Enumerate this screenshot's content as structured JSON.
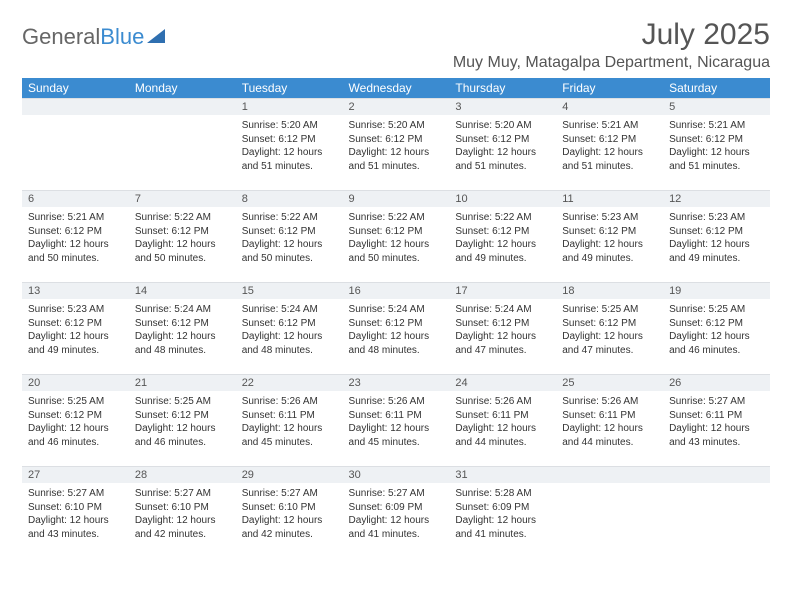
{
  "logo": {
    "word1": "General",
    "word2": "Blue"
  },
  "header": {
    "month_title": "July 2025",
    "location": "Muy Muy, Matagalpa Department, Nicaragua"
  },
  "colors": {
    "header_bg": "#3b8bd0",
    "header_text": "#ffffff",
    "daynum_bg": "#eef1f4",
    "page_bg": "#ffffff",
    "text": "#333333"
  },
  "weekdays": [
    "Sunday",
    "Monday",
    "Tuesday",
    "Wednesday",
    "Thursday",
    "Friday",
    "Saturday"
  ],
  "weeks": [
    [
      {
        "day": "",
        "sunrise": "",
        "sunset": "",
        "daylight": ""
      },
      {
        "day": "",
        "sunrise": "",
        "sunset": "",
        "daylight": ""
      },
      {
        "day": "1",
        "sunrise": "Sunrise: 5:20 AM",
        "sunset": "Sunset: 6:12 PM",
        "daylight": "Daylight: 12 hours and 51 minutes."
      },
      {
        "day": "2",
        "sunrise": "Sunrise: 5:20 AM",
        "sunset": "Sunset: 6:12 PM",
        "daylight": "Daylight: 12 hours and 51 minutes."
      },
      {
        "day": "3",
        "sunrise": "Sunrise: 5:20 AM",
        "sunset": "Sunset: 6:12 PM",
        "daylight": "Daylight: 12 hours and 51 minutes."
      },
      {
        "day": "4",
        "sunrise": "Sunrise: 5:21 AM",
        "sunset": "Sunset: 6:12 PM",
        "daylight": "Daylight: 12 hours and 51 minutes."
      },
      {
        "day": "5",
        "sunrise": "Sunrise: 5:21 AM",
        "sunset": "Sunset: 6:12 PM",
        "daylight": "Daylight: 12 hours and 51 minutes."
      }
    ],
    [
      {
        "day": "6",
        "sunrise": "Sunrise: 5:21 AM",
        "sunset": "Sunset: 6:12 PM",
        "daylight": "Daylight: 12 hours and 50 minutes."
      },
      {
        "day": "7",
        "sunrise": "Sunrise: 5:22 AM",
        "sunset": "Sunset: 6:12 PM",
        "daylight": "Daylight: 12 hours and 50 minutes."
      },
      {
        "day": "8",
        "sunrise": "Sunrise: 5:22 AM",
        "sunset": "Sunset: 6:12 PM",
        "daylight": "Daylight: 12 hours and 50 minutes."
      },
      {
        "day": "9",
        "sunrise": "Sunrise: 5:22 AM",
        "sunset": "Sunset: 6:12 PM",
        "daylight": "Daylight: 12 hours and 50 minutes."
      },
      {
        "day": "10",
        "sunrise": "Sunrise: 5:22 AM",
        "sunset": "Sunset: 6:12 PM",
        "daylight": "Daylight: 12 hours and 49 minutes."
      },
      {
        "day": "11",
        "sunrise": "Sunrise: 5:23 AM",
        "sunset": "Sunset: 6:12 PM",
        "daylight": "Daylight: 12 hours and 49 minutes."
      },
      {
        "day": "12",
        "sunrise": "Sunrise: 5:23 AM",
        "sunset": "Sunset: 6:12 PM",
        "daylight": "Daylight: 12 hours and 49 minutes."
      }
    ],
    [
      {
        "day": "13",
        "sunrise": "Sunrise: 5:23 AM",
        "sunset": "Sunset: 6:12 PM",
        "daylight": "Daylight: 12 hours and 49 minutes."
      },
      {
        "day": "14",
        "sunrise": "Sunrise: 5:24 AM",
        "sunset": "Sunset: 6:12 PM",
        "daylight": "Daylight: 12 hours and 48 minutes."
      },
      {
        "day": "15",
        "sunrise": "Sunrise: 5:24 AM",
        "sunset": "Sunset: 6:12 PM",
        "daylight": "Daylight: 12 hours and 48 minutes."
      },
      {
        "day": "16",
        "sunrise": "Sunrise: 5:24 AM",
        "sunset": "Sunset: 6:12 PM",
        "daylight": "Daylight: 12 hours and 48 minutes."
      },
      {
        "day": "17",
        "sunrise": "Sunrise: 5:24 AM",
        "sunset": "Sunset: 6:12 PM",
        "daylight": "Daylight: 12 hours and 47 minutes."
      },
      {
        "day": "18",
        "sunrise": "Sunrise: 5:25 AM",
        "sunset": "Sunset: 6:12 PM",
        "daylight": "Daylight: 12 hours and 47 minutes."
      },
      {
        "day": "19",
        "sunrise": "Sunrise: 5:25 AM",
        "sunset": "Sunset: 6:12 PM",
        "daylight": "Daylight: 12 hours and 46 minutes."
      }
    ],
    [
      {
        "day": "20",
        "sunrise": "Sunrise: 5:25 AM",
        "sunset": "Sunset: 6:12 PM",
        "daylight": "Daylight: 12 hours and 46 minutes."
      },
      {
        "day": "21",
        "sunrise": "Sunrise: 5:25 AM",
        "sunset": "Sunset: 6:12 PM",
        "daylight": "Daylight: 12 hours and 46 minutes."
      },
      {
        "day": "22",
        "sunrise": "Sunrise: 5:26 AM",
        "sunset": "Sunset: 6:11 PM",
        "daylight": "Daylight: 12 hours and 45 minutes."
      },
      {
        "day": "23",
        "sunrise": "Sunrise: 5:26 AM",
        "sunset": "Sunset: 6:11 PM",
        "daylight": "Daylight: 12 hours and 45 minutes."
      },
      {
        "day": "24",
        "sunrise": "Sunrise: 5:26 AM",
        "sunset": "Sunset: 6:11 PM",
        "daylight": "Daylight: 12 hours and 44 minutes."
      },
      {
        "day": "25",
        "sunrise": "Sunrise: 5:26 AM",
        "sunset": "Sunset: 6:11 PM",
        "daylight": "Daylight: 12 hours and 44 minutes."
      },
      {
        "day": "26",
        "sunrise": "Sunrise: 5:27 AM",
        "sunset": "Sunset: 6:11 PM",
        "daylight": "Daylight: 12 hours and 43 minutes."
      }
    ],
    [
      {
        "day": "27",
        "sunrise": "Sunrise: 5:27 AM",
        "sunset": "Sunset: 6:10 PM",
        "daylight": "Daylight: 12 hours and 43 minutes."
      },
      {
        "day": "28",
        "sunrise": "Sunrise: 5:27 AM",
        "sunset": "Sunset: 6:10 PM",
        "daylight": "Daylight: 12 hours and 42 minutes."
      },
      {
        "day": "29",
        "sunrise": "Sunrise: 5:27 AM",
        "sunset": "Sunset: 6:10 PM",
        "daylight": "Daylight: 12 hours and 42 minutes."
      },
      {
        "day": "30",
        "sunrise": "Sunrise: 5:27 AM",
        "sunset": "Sunset: 6:09 PM",
        "daylight": "Daylight: 12 hours and 41 minutes."
      },
      {
        "day": "31",
        "sunrise": "Sunrise: 5:28 AM",
        "sunset": "Sunset: 6:09 PM",
        "daylight": "Daylight: 12 hours and 41 minutes."
      },
      {
        "day": "",
        "sunrise": "",
        "sunset": "",
        "daylight": ""
      },
      {
        "day": "",
        "sunrise": "",
        "sunset": "",
        "daylight": ""
      }
    ]
  ]
}
